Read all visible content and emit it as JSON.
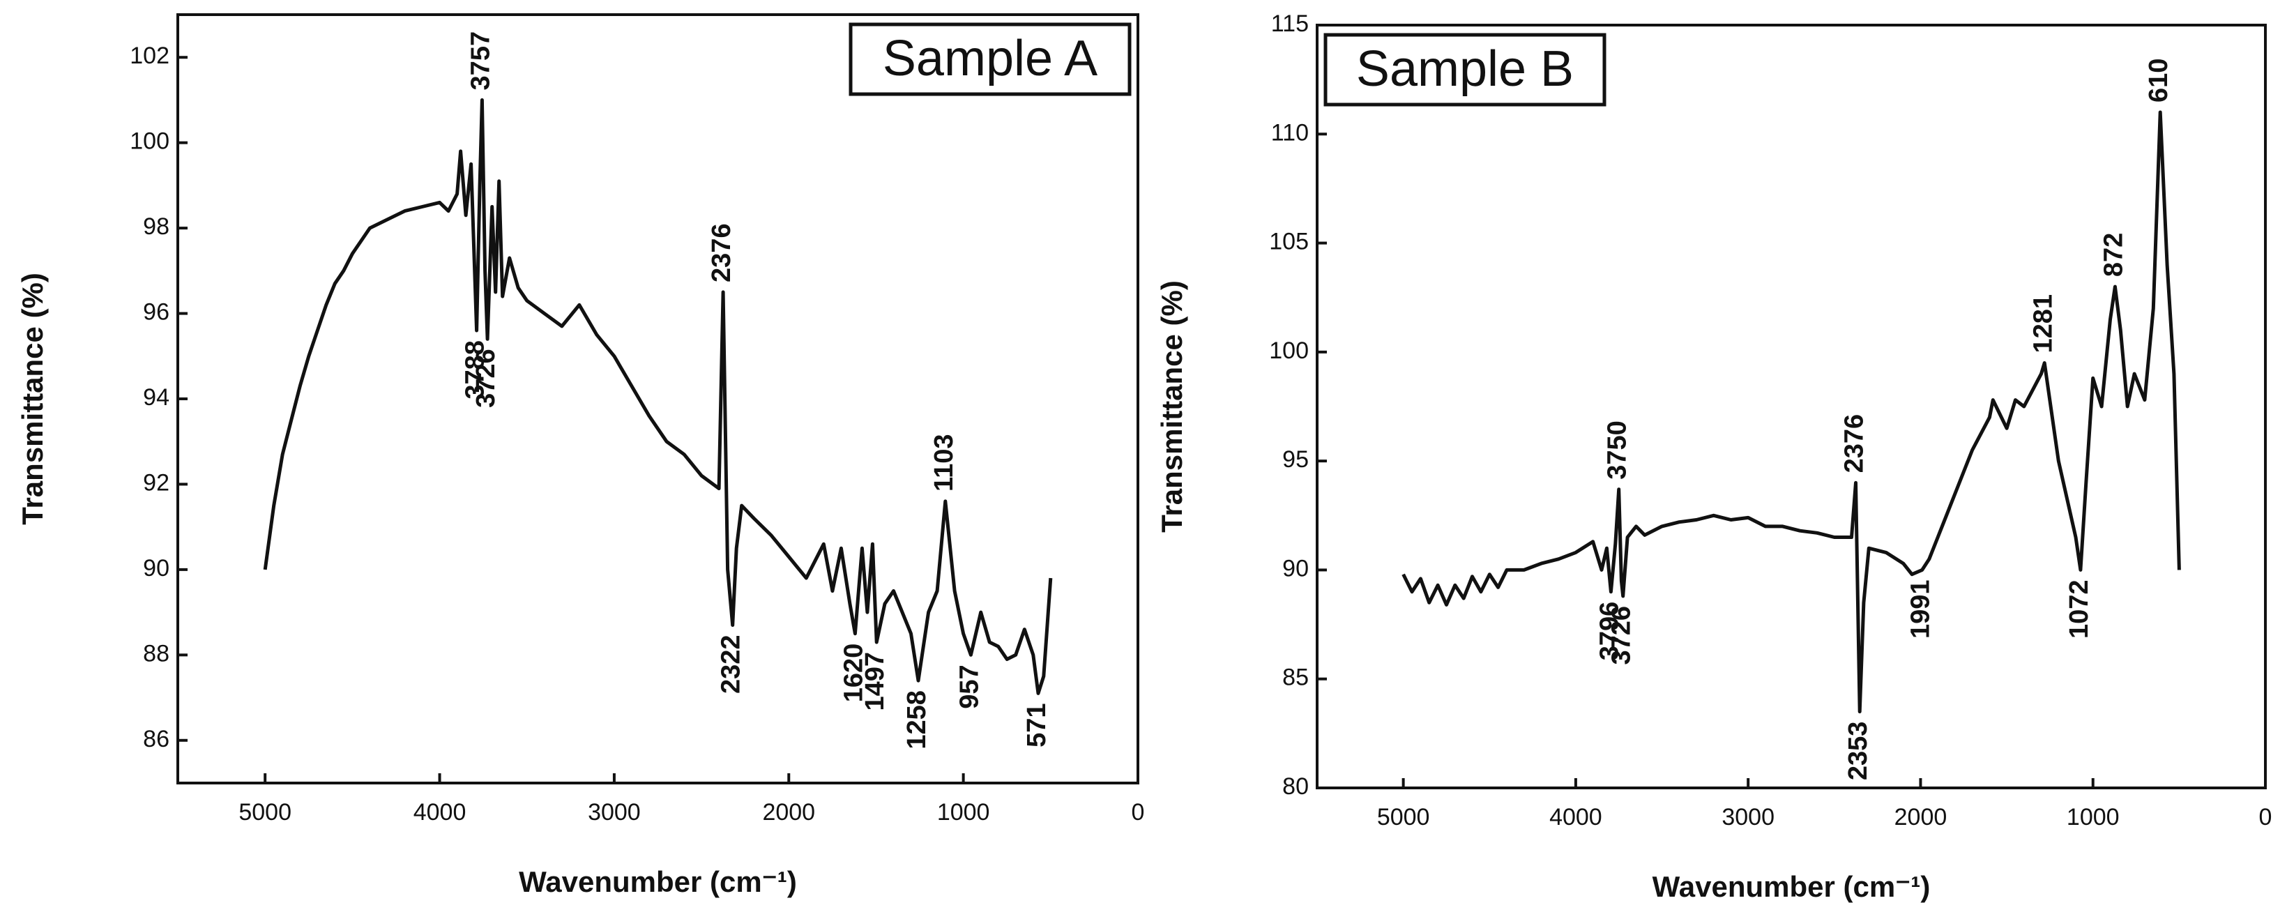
{
  "chart_data": [
    {
      "type": "line",
      "title": "Sample A",
      "title_position": "top-right",
      "x_label": "Wavenumber (cm⁻¹)",
      "y_label": "Transmittance (%)",
      "xlim": [
        5500,
        0
      ],
      "xticks": [
        5000,
        4000,
        3000,
        2000,
        1000,
        0
      ],
      "ylim": [
        85,
        103
      ],
      "yticks": [
        86,
        88,
        90,
        92,
        94,
        96,
        98,
        100,
        102
      ],
      "color": "#111111",
      "x": [
        5000,
        4950,
        4900,
        4850,
        4800,
        4750,
        4700,
        4650,
        4600,
        4550,
        4500,
        4450,
        4400,
        4300,
        4200,
        4100,
        4000,
        3950,
        3900,
        3880,
        3850,
        3820,
        3788,
        3770,
        3757,
        3740,
        3726,
        3700,
        3680,
        3660,
        3640,
        3600,
        3550,
        3500,
        3400,
        3300,
        3200,
        3100,
        3000,
        2900,
        2800,
        2700,
        2600,
        2500,
        2400,
        2376,
        2350,
        2322,
        2300,
        2270,
        2200,
        2100,
        2000,
        1900,
        1800,
        1750,
        1700,
        1650,
        1620,
        1580,
        1550,
        1520,
        1497,
        1450,
        1400,
        1350,
        1300,
        1258,
        1200,
        1150,
        1103,
        1050,
        1000,
        957,
        900,
        850,
        800,
        750,
        700,
        650,
        600,
        571,
        540,
        500
      ],
      "values": [
        90.0,
        91.5,
        92.7,
        93.5,
        94.3,
        95.0,
        95.6,
        96.2,
        96.7,
        97.0,
        97.4,
        97.7,
        98.0,
        98.2,
        98.4,
        98.5,
        98.6,
        98.4,
        98.8,
        99.8,
        98.3,
        99.5,
        95.6,
        99.0,
        101.0,
        97.0,
        95.4,
        98.5,
        96.5,
        99.1,
        96.4,
        97.3,
        96.6,
        96.3,
        96.0,
        95.7,
        96.2,
        95.5,
        95.0,
        94.3,
        93.6,
        93.0,
        92.7,
        92.2,
        91.9,
        96.5,
        90.0,
        88.7,
        90.5,
        91.5,
        91.2,
        90.8,
        90.3,
        89.8,
        90.6,
        89.5,
        90.5,
        89.2,
        88.5,
        90.5,
        89.0,
        90.6,
        88.3,
        89.2,
        89.5,
        89.0,
        88.5,
        87.4,
        89.0,
        89.5,
        91.6,
        89.5,
        88.5,
        88.0,
        89.0,
        88.3,
        88.2,
        87.9,
        88.0,
        88.6,
        88.0,
        87.1,
        87.5,
        89.8
      ],
      "peak_labels": [
        {
          "x": 3757,
          "y": 101.0
        },
        {
          "x": 2376,
          "y": 96.5
        },
        {
          "x": 1103,
          "y": 91.6
        }
      ],
      "dip_labels": [
        {
          "x": 3788,
          "y": 95.6
        },
        {
          "x": 3726,
          "y": 95.4
        },
        {
          "x": 2322,
          "y": 88.7
        },
        {
          "x": 1620,
          "y": 88.5
        },
        {
          "x": 1497,
          "y": 88.3
        },
        {
          "x": 1258,
          "y": 87.4
        },
        {
          "x": 957,
          "y": 88.0
        },
        {
          "x": 571,
          "y": 87.1
        }
      ]
    },
    {
      "type": "line",
      "title": "Sample B",
      "title_position": "top-left",
      "x_label": "Wavenumber (cm⁻¹)",
      "y_label": "Transmittance (%)",
      "xlim": [
        5500,
        0
      ],
      "xticks": [
        5000,
        4000,
        3000,
        2000,
        1000,
        0
      ],
      "ylim": [
        80,
        115
      ],
      "yticks": [
        80,
        85,
        90,
        95,
        100,
        105,
        110,
        115
      ],
      "color": "#111111",
      "x": [
        5000,
        4950,
        4900,
        4850,
        4800,
        4750,
        4700,
        4650,
        4600,
        4550,
        4500,
        4450,
        4400,
        4300,
        4200,
        4100,
        4000,
        3900,
        3850,
        3820,
        3796,
        3770,
        3750,
        3735,
        3726,
        3700,
        3650,
        3600,
        3500,
        3400,
        3300,
        3200,
        3100,
        3000,
        2900,
        2800,
        2700,
        2600,
        2500,
        2400,
        2376,
        2353,
        2330,
        2300,
        2200,
        2100,
        2050,
        1991,
        1950,
        1900,
        1800,
        1700,
        1600,
        1580,
        1500,
        1450,
        1400,
        1300,
        1281,
        1200,
        1100,
        1072,
        1040,
        1000,
        950,
        900,
        872,
        840,
        800,
        760,
        700,
        650,
        610,
        570,
        530,
        500
      ],
      "values": [
        89.8,
        89.0,
        89.6,
        88.5,
        89.3,
        88.4,
        89.3,
        88.7,
        89.7,
        89.0,
        89.8,
        89.2,
        90.0,
        90.0,
        90.3,
        90.5,
        90.8,
        91.3,
        90.0,
        91.0,
        89.0,
        91.2,
        93.7,
        89.5,
        88.8,
        91.5,
        92.0,
        91.6,
        92.0,
        92.2,
        92.3,
        92.5,
        92.3,
        92.4,
        92.0,
        92.0,
        91.8,
        91.7,
        91.5,
        91.5,
        94.0,
        83.5,
        88.5,
        91.0,
        90.8,
        90.3,
        89.8,
        90.0,
        90.5,
        91.5,
        93.5,
        95.5,
        97.0,
        97.8,
        96.5,
        97.8,
        97.5,
        99.0,
        99.5,
        95.0,
        91.5,
        90.0,
        94.0,
        98.8,
        97.5,
        101.5,
        103.0,
        101.0,
        97.5,
        99.0,
        97.8,
        102.0,
        111.0,
        104.0,
        99.0,
        90.0
      ],
      "peak_labels": [
        {
          "x": 3750,
          "y": 93.7
        },
        {
          "x": 2376,
          "y": 94.0
        },
        {
          "x": 1281,
          "y": 99.5
        },
        {
          "x": 872,
          "y": 103.0
        },
        {
          "x": 610,
          "y": 111.0
        }
      ],
      "dip_labels": [
        {
          "x": 3796,
          "y": 89.0
        },
        {
          "x": 3726,
          "y": 88.8
        },
        {
          "x": 2353,
          "y": 83.5
        },
        {
          "x": 1991,
          "y": 90.0
        },
        {
          "x": 1072,
          "y": 90.0
        }
      ]
    }
  ]
}
